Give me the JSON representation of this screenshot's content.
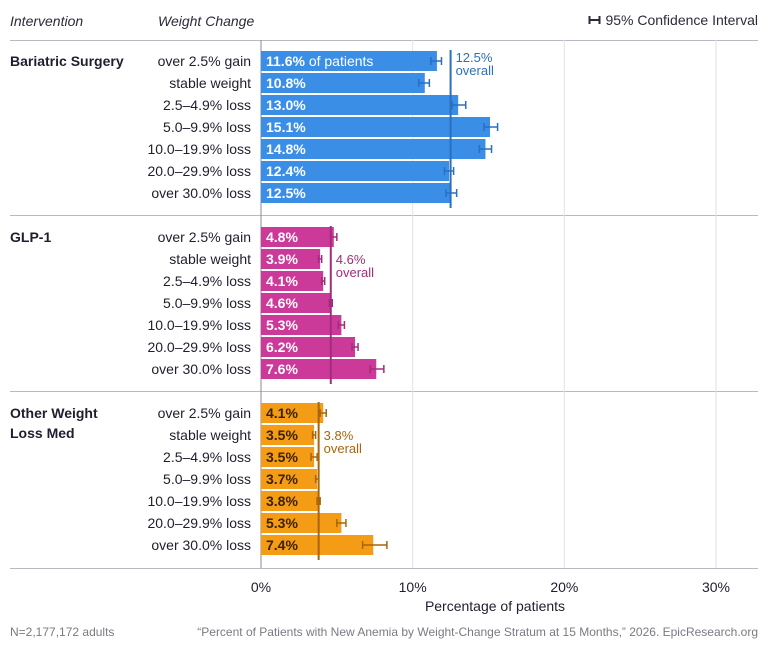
{
  "header": {
    "intervention": "Intervention",
    "weight_change": "Weight Change",
    "legend": "95% Confidence Interval"
  },
  "footer": {
    "n": "N=2,177,172 adults",
    "source": "“Percent of Patients with New Anemia by Weight-Change Stratum at 15 Months,” 2026. EpicResearch.org"
  },
  "chart_data": {
    "type": "bar",
    "orientation": "horizontal",
    "xlabel": "Percentage of patients",
    "xlim": [
      0,
      30
    ],
    "xticks": [
      "0%",
      "10%",
      "20%",
      "30%"
    ],
    "categories": [
      "over 2.5% gain",
      "stable weight",
      "2.5–4.9% loss",
      "5.0–9.9% loss",
      "10.0–19.9% loss",
      "20.0–29.9% loss",
      "over 30.0% loss"
    ],
    "first_label_suffix": "of patients",
    "overall_suffix": "overall",
    "groups": [
      {
        "name": "Bariatric Surgery",
        "color": "#3a8ee6",
        "label_color": "#ffffff",
        "overall": 12.5,
        "overall_label": "12.5%",
        "values": [
          11.6,
          10.8,
          13.0,
          15.1,
          14.8,
          12.4,
          12.5
        ],
        "labels": [
          "11.6%",
          "10.8%",
          "13.0%",
          "15.1%",
          "14.8%",
          "12.4%",
          "12.5%"
        ],
        "ci": [
          [
            11.2,
            11.9
          ],
          [
            10.4,
            11.1
          ],
          [
            12.6,
            13.5
          ],
          [
            14.7,
            15.6
          ],
          [
            14.4,
            15.2
          ],
          [
            12.1,
            12.7
          ],
          [
            12.2,
            12.9
          ]
        ]
      },
      {
        "name": "GLP-1",
        "color": "#cc3a99",
        "label_color": "#ffffff",
        "overall": 4.6,
        "overall_label": "4.6%",
        "values": [
          4.8,
          3.9,
          4.1,
          4.6,
          5.3,
          6.2,
          7.6
        ],
        "labels": [
          "4.8%",
          "3.9%",
          "4.1%",
          "4.6%",
          "5.3%",
          "6.2%",
          "7.6%"
        ],
        "ci": [
          [
            4.6,
            5.0
          ],
          [
            3.8,
            4.0
          ],
          [
            4.0,
            4.2
          ],
          [
            4.5,
            4.7
          ],
          [
            5.1,
            5.5
          ],
          [
            6.0,
            6.4
          ],
          [
            7.2,
            8.1
          ]
        ]
      },
      {
        "name": "Other Weight Loss Med",
        "color": "#f59c16",
        "label_color": "#3a2100",
        "overall": 3.8,
        "overall_label": "3.8%",
        "values": [
          4.1,
          3.5,
          3.5,
          3.7,
          3.8,
          5.3,
          7.4
        ],
        "labels": [
          "4.1%",
          "3.5%",
          "3.5%",
          "3.7%",
          "3.8%",
          "5.3%",
          "7.4%"
        ],
        "ci": [
          [
            3.9,
            4.3
          ],
          [
            3.4,
            3.6
          ],
          [
            3.3,
            3.7
          ],
          [
            3.6,
            3.8
          ],
          [
            3.7,
            3.9
          ],
          [
            5.0,
            5.6
          ],
          [
            6.7,
            8.3
          ]
        ]
      }
    ],
    "grid": true
  }
}
